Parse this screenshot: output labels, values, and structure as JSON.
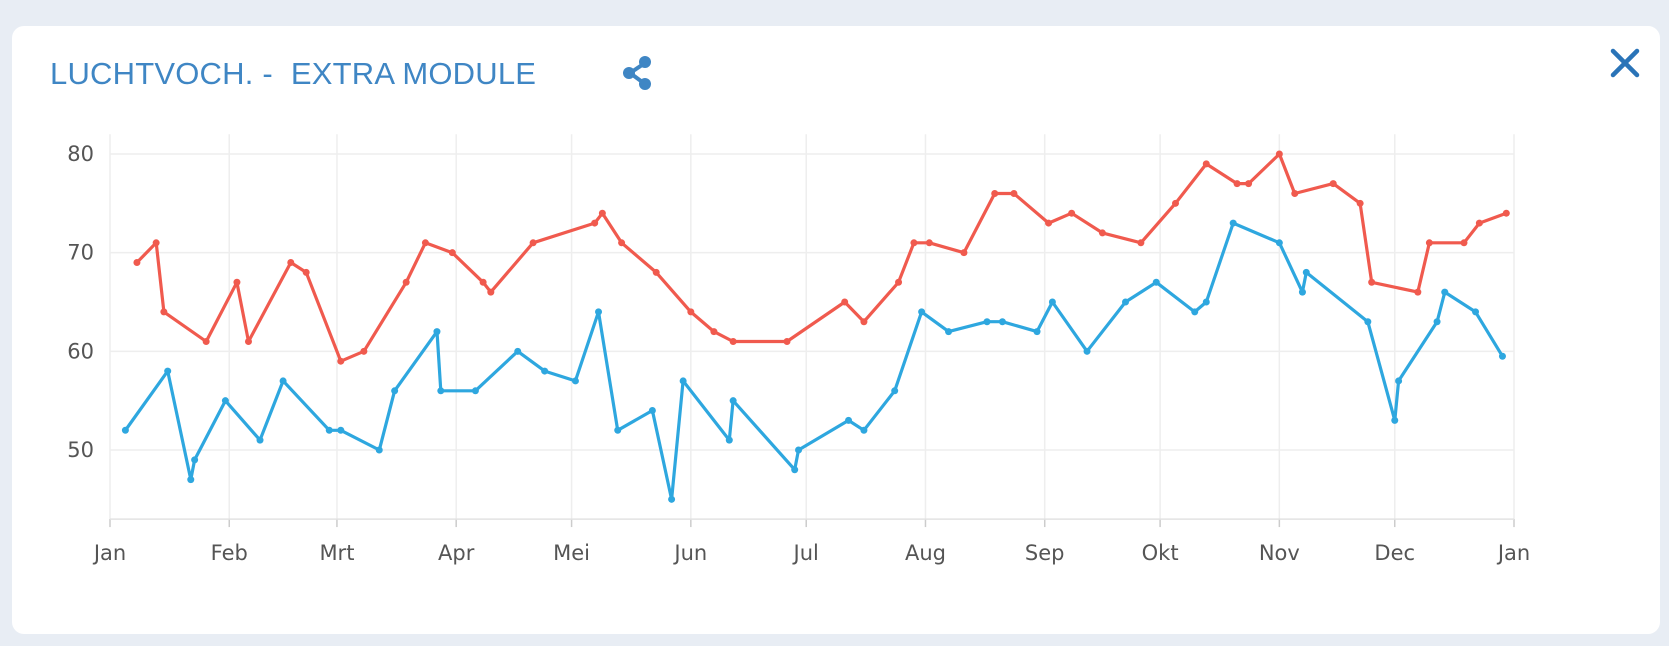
{
  "header": {
    "title_part1": "LUCHTVOCH. -",
    "title_part2": "EXTRA MODULE",
    "share_icon": "share-icon",
    "close_icon": "close-icon"
  },
  "colors": {
    "title": "#3f86c4",
    "series_red": "#f05a4e",
    "series_blue": "#2ea7df",
    "grid": "#eeeeee"
  },
  "chart_data": {
    "type": "line",
    "title": "",
    "xlabel": "",
    "ylabel": "",
    "xlim": [
      0,
      365
    ],
    "ylim": [
      43,
      82
    ],
    "x_ticks": [
      {
        "label": "Jan",
        "x": 0
      },
      {
        "label": "Feb",
        "x": 31
      },
      {
        "label": "Mrt",
        "x": 59
      },
      {
        "label": "Apr",
        "x": 90
      },
      {
        "label": "Mei",
        "x": 120
      },
      {
        "label": "Jun",
        "x": 151
      },
      {
        "label": "Jul",
        "x": 181
      },
      {
        "label": "Aug",
        "x": 212
      },
      {
        "label": "Sep",
        "x": 243
      },
      {
        "label": "Okt",
        "x": 273
      },
      {
        "label": "Nov",
        "x": 304
      },
      {
        "label": "Dec",
        "x": 334
      },
      {
        "label": "Jan",
        "x": 365
      }
    ],
    "y_ticks": [
      50,
      60,
      70,
      80
    ],
    "grid": true,
    "legend": "none",
    "series": [
      {
        "color": "#f05a4e",
        "points": [
          [
            7,
            69
          ],
          [
            12,
            71
          ],
          [
            14,
            64
          ],
          [
            25,
            61
          ],
          [
            33,
            67
          ],
          [
            36,
            61
          ],
          [
            47,
            69
          ],
          [
            51,
            68
          ],
          [
            60,
            59
          ],
          [
            66,
            60
          ],
          [
            77,
            67
          ],
          [
            82,
            71
          ],
          [
            89,
            70
          ],
          [
            97,
            67
          ],
          [
            99,
            66
          ],
          [
            110,
            71
          ],
          [
            126,
            73
          ],
          [
            128,
            74
          ],
          [
            133,
            71
          ],
          [
            142,
            68
          ],
          [
            151,
            64
          ],
          [
            157,
            62
          ],
          [
            162,
            61
          ],
          [
            176,
            61
          ],
          [
            191,
            65
          ],
          [
            196,
            63
          ],
          [
            205,
            67
          ],
          [
            209,
            71
          ],
          [
            213,
            71
          ],
          [
            222,
            70
          ],
          [
            230,
            76
          ],
          [
            235,
            76
          ],
          [
            244,
            73
          ],
          [
            250,
            74
          ],
          [
            258,
            72
          ],
          [
            268,
            71
          ],
          [
            277,
            75
          ],
          [
            285,
            79
          ],
          [
            293,
            77
          ],
          [
            296,
            77
          ],
          [
            304,
            80
          ],
          [
            308,
            76
          ],
          [
            318,
            77
          ],
          [
            325,
            75
          ],
          [
            328,
            67
          ],
          [
            340,
            66
          ],
          [
            343,
            71
          ],
          [
            352,
            71
          ],
          [
            356,
            73
          ],
          [
            363,
            74
          ]
        ]
      },
      {
        "color": "#2ea7df",
        "points": [
          [
            4,
            52
          ],
          [
            15,
            58
          ],
          [
            21,
            47
          ],
          [
            22,
            49
          ],
          [
            30,
            55
          ],
          [
            39,
            51
          ],
          [
            45,
            57
          ],
          [
            57,
            52
          ],
          [
            60,
            52
          ],
          [
            70,
            50
          ],
          [
            74,
            56
          ],
          [
            85,
            62
          ],
          [
            86,
            56
          ],
          [
            95,
            56
          ],
          [
            106,
            60
          ],
          [
            113,
            58
          ],
          [
            121,
            57
          ],
          [
            127,
            64
          ],
          [
            132,
            52
          ],
          [
            141,
            54
          ],
          [
            146,
            45
          ],
          [
            149,
            57
          ],
          [
            161,
            51
          ],
          [
            162,
            55
          ],
          [
            178,
            48
          ],
          [
            179,
            50
          ],
          [
            192,
            53
          ],
          [
            196,
            52
          ],
          [
            204,
            56
          ],
          [
            211,
            64
          ],
          [
            218,
            62
          ],
          [
            228,
            63
          ],
          [
            232,
            63
          ],
          [
            241,
            62
          ],
          [
            245,
            65
          ],
          [
            254,
            60
          ],
          [
            264,
            65
          ],
          [
            272,
            67
          ],
          [
            282,
            64
          ],
          [
            285,
            65
          ],
          [
            292,
            73
          ],
          [
            304,
            71
          ],
          [
            310,
            66
          ],
          [
            311,
            68
          ],
          [
            327,
            63
          ],
          [
            334,
            53
          ],
          [
            335,
            57
          ],
          [
            345,
            63
          ],
          [
            347,
            66
          ],
          [
            355,
            64
          ],
          [
            362,
            59.5
          ]
        ]
      }
    ]
  }
}
